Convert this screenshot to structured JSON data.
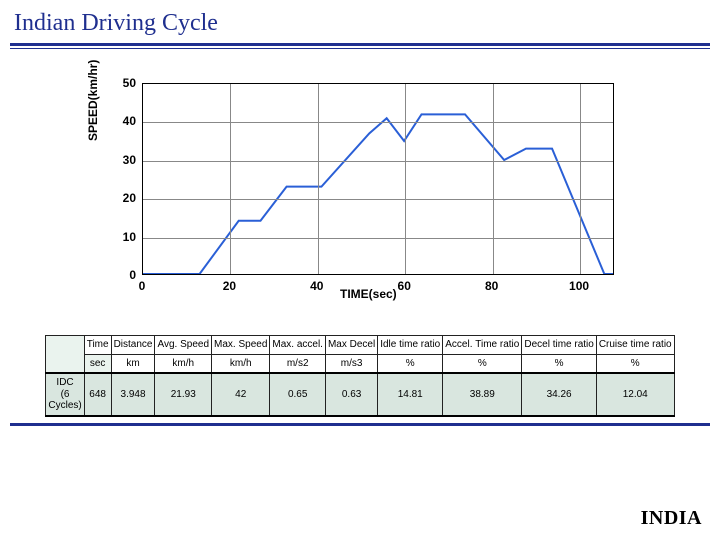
{
  "title": "Indian Driving Cycle",
  "footer_label": "INDIA",
  "chart": {
    "type": "line",
    "xlabel": "TIME(sec)",
    "ylabel": "SPEED(km/hr)",
    "xlim": [
      0,
      108
    ],
    "ylim": [
      0,
      50
    ],
    "xticks": [
      0,
      20,
      40,
      60,
      80,
      100
    ],
    "yticks": [
      0,
      10,
      20,
      30,
      40,
      50
    ],
    "line_color": "#2a5fd6",
    "line_width": 2,
    "grid_color": "#888888",
    "background": "#ffffff",
    "series": [
      {
        "x": 0,
        "y": 0
      },
      {
        "x": 13,
        "y": 0
      },
      {
        "x": 22,
        "y": 14
      },
      {
        "x": 27,
        "y": 14
      },
      {
        "x": 33,
        "y": 23
      },
      {
        "x": 41,
        "y": 23
      },
      {
        "x": 52,
        "y": 37
      },
      {
        "x": 56,
        "y": 41
      },
      {
        "x": 60,
        "y": 35
      },
      {
        "x": 64,
        "y": 42
      },
      {
        "x": 74,
        "y": 42
      },
      {
        "x": 83,
        "y": 30
      },
      {
        "x": 88,
        "y": 33
      },
      {
        "x": 94,
        "y": 33
      },
      {
        "x": 106,
        "y": 0
      },
      {
        "x": 108,
        "y": 0
      }
    ]
  },
  "table": {
    "columns": [
      "",
      "Time",
      "Distance",
      "Avg. Speed",
      "Max. Speed",
      "Max. accel.",
      "Max Decel",
      "Idle time ratio",
      "Accel. Time ratio",
      "Decel time ratio",
      "Cruise time ratio"
    ],
    "units": [
      "",
      "sec",
      "km",
      "km/h",
      "km/h",
      "m/s2",
      "m/s3",
      "%",
      "%",
      "%",
      "%"
    ],
    "row_label": "IDC\n(6 Cycles)",
    "values": [
      "648",
      "3.948",
      "21.93",
      "42",
      "0.65",
      "0.63",
      "14.81",
      "38.89",
      "34.26",
      "12.04"
    ]
  },
  "colors": {
    "accent": "#1f2f8f",
    "table_header_bg": "#eaf3ee",
    "table_emph_bg": "#d9e6df"
  }
}
